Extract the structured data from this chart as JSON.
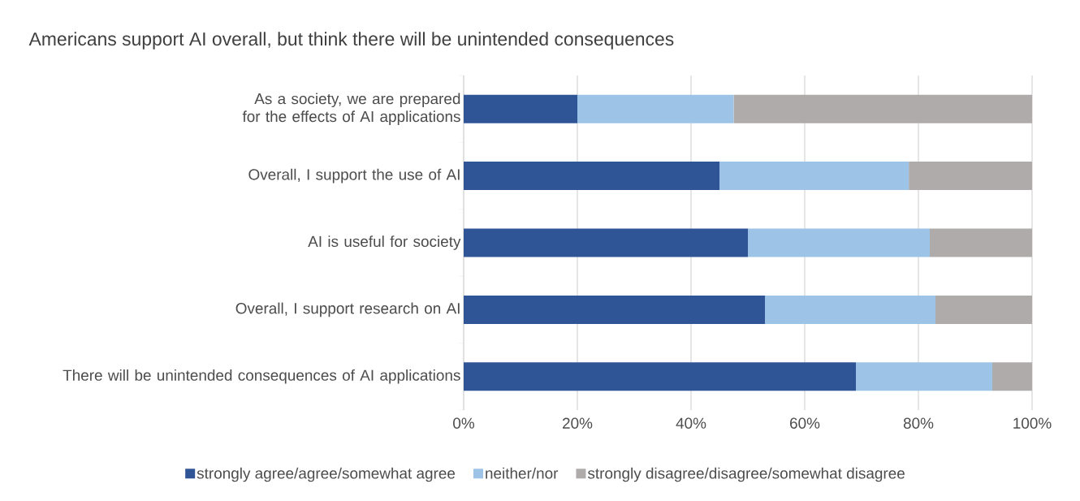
{
  "chart_data": {
    "type": "bar",
    "orientation": "horizontal",
    "stacked": true,
    "title": "Americans support AI overall, but think there will be unintended consequences",
    "categories": [
      "As a society, we are prepared for the effects of AI applications",
      "Overall, I support the use of AI",
      "AI is useful for society",
      "Overall, I support research on AI",
      "There will be unintended consequences of AI applications"
    ],
    "series": [
      {
        "name": "strongly agree/agree/somewhat agree",
        "color": "#2f5597",
        "values": [
          20,
          45,
          50,
          53,
          69
        ]
      },
      {
        "name": "neither/nor",
        "color": "#9dc3e6",
        "values": [
          27.5,
          33.3,
          32,
          30,
          24
        ]
      },
      {
        "name": "strongly disagree/disagree/somewhat disagree",
        "color": "#afabab",
        "values": [
          52.5,
          21.7,
          18,
          17,
          7
        ]
      }
    ],
    "xlim": [
      0,
      100
    ],
    "xticks": [
      {
        "value": 0,
        "label": "0%"
      },
      {
        "value": 20,
        "label": "20%"
      },
      {
        "value": 40,
        "label": "40%"
      },
      {
        "value": 60,
        "label": "60%"
      },
      {
        "value": 80,
        "label": "80%"
      },
      {
        "value": 100,
        "label": "100%"
      }
    ],
    "grid": "x",
    "legend": "bottom"
  }
}
